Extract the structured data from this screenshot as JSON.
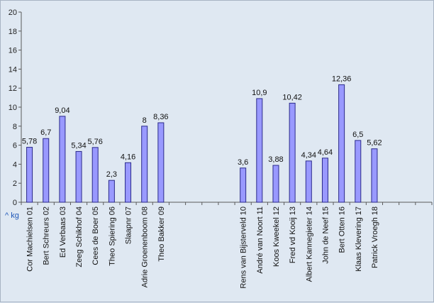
{
  "chart_data": {
    "type": "bar",
    "ylim": [
      0,
      20
    ],
    "yticks": [
      0,
      2,
      4,
      6,
      8,
      10,
      12,
      14,
      16,
      18,
      20
    ],
    "grid": false,
    "unit_label": "^ kg",
    "categories": [
      "Cor Machielsen 01",
      "Bert Schreurs 02",
      "Ed Verbaas 03",
      "Zeeg Schikhof 04",
      "Cees de Boer 05",
      "Theo Spiering 06",
      "Slaapnr 07",
      "Adrie Groenenboom 08",
      "Theo Bakker 09",
      "",
      "",
      "",
      "",
      "Rens van Bijsterveld 10",
      "André van Noort 11",
      "Koos Kweekel 12",
      "Fred vd Kooij 13",
      "Albert Kannegieter 14",
      "John de Neef 15",
      "Bert Otten 16",
      "Klaas Klevering 17",
      "Patrick Vroegh 18",
      "",
      "",
      ""
    ],
    "values": [
      5.78,
      6.7,
      9.04,
      5.34,
      5.76,
      2.3,
      4.16,
      8,
      8.36,
      null,
      null,
      null,
      null,
      3.6,
      10.9,
      3.88,
      10.42,
      4.34,
      4.64,
      12.36,
      6.5,
      5.62,
      null,
      null,
      null
    ],
    "data_labels": [
      "5,78",
      "6,7",
      "9,04",
      "5,34",
      "5,76",
      "2,3",
      "4,16",
      "8",
      "8,36",
      "",
      "",
      "",
      "",
      "3,6",
      "10,9",
      "3,88",
      "10,42",
      "4,34",
      "4,64",
      "12,36",
      "6,5",
      "5,62",
      "",
      "",
      ""
    ],
    "colors": {
      "bar_fill": "#9999ff",
      "bar_stroke": "#2a2a8a",
      "plot_bg": "#dfe8f2",
      "axis": "#5a5a5a"
    }
  }
}
